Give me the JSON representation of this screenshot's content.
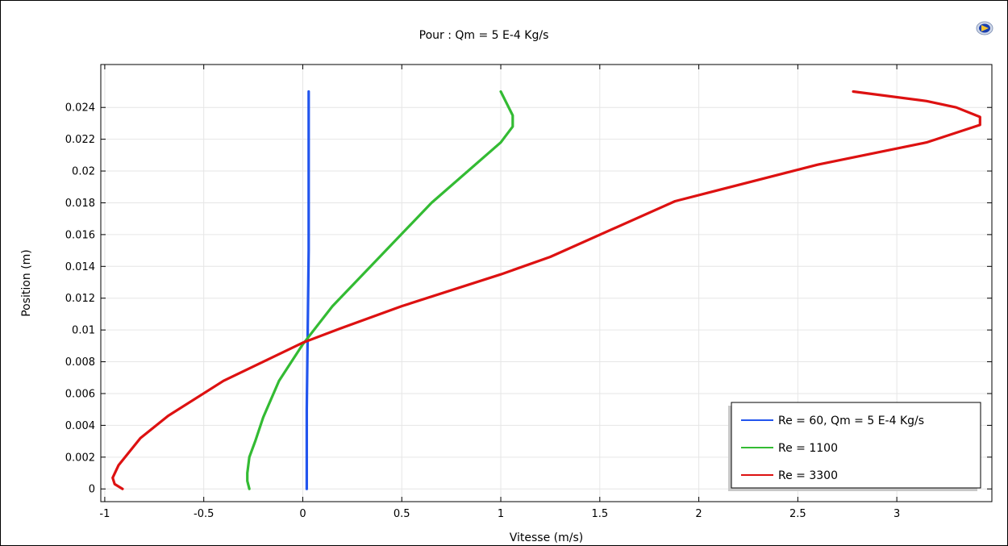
{
  "title": "Pour : Qm = 5 E-4 Kg/s",
  "icon": "comsol-logo-icon",
  "chart_data": {
    "type": "line",
    "title": "Pour : Qm = 5 E-4 Kg/s",
    "xlabel": "Vitesse (m/s)",
    "ylabel": "Position (m)",
    "xlim": [
      -1.02,
      3.48
    ],
    "ylim": [
      -0.0008,
      0.0267
    ],
    "grid": true,
    "legend_position": "bottom-right",
    "x_ticks": [
      {
        "v": -1,
        "label": "-1"
      },
      {
        "v": -0.5,
        "label": "-0.5"
      },
      {
        "v": 0,
        "label": "0"
      },
      {
        "v": 0.5,
        "label": "0.5"
      },
      {
        "v": 1,
        "label": "1"
      },
      {
        "v": 1.5,
        "label": "1.5"
      },
      {
        "v": 2,
        "label": "2"
      },
      {
        "v": 2.5,
        "label": "2.5"
      },
      {
        "v": 3,
        "label": "3"
      }
    ],
    "y_ticks": [
      {
        "v": 0,
        "label": "0"
      },
      {
        "v": 0.002,
        "label": "0.002"
      },
      {
        "v": 0.004,
        "label": "0.004"
      },
      {
        "v": 0.006,
        "label": "0.006"
      },
      {
        "v": 0.008,
        "label": "0.008"
      },
      {
        "v": 0.01,
        "label": "0.01"
      },
      {
        "v": 0.012,
        "label": "0.012"
      },
      {
        "v": 0.014,
        "label": "0.014"
      },
      {
        "v": 0.016,
        "label": "0.016"
      },
      {
        "v": 0.018,
        "label": "0.018"
      },
      {
        "v": 0.02,
        "label": "0.02"
      },
      {
        "v": 0.022,
        "label": "0.022"
      },
      {
        "v": 0.024,
        "label": "0.024"
      }
    ],
    "series": [
      {
        "name": "Re = 60, Qm = 5 E-4 Kg/s",
        "color": "#2255ee",
        "points": [
          [
            0.02,
            0.0
          ],
          [
            0.02,
            0.005
          ],
          [
            0.025,
            0.01
          ],
          [
            0.03,
            0.015
          ],
          [
            0.03,
            0.02
          ],
          [
            0.03,
            0.025
          ]
        ]
      },
      {
        "name": "Re = 1100",
        "color": "#33bb33",
        "points": [
          [
            -0.27,
            0.0
          ],
          [
            -0.28,
            0.0005
          ],
          [
            -0.28,
            0.001
          ],
          [
            -0.27,
            0.002
          ],
          [
            -0.24,
            0.003
          ],
          [
            -0.2,
            0.0045
          ],
          [
            -0.12,
            0.0068
          ],
          [
            0.0,
            0.0091
          ],
          [
            0.15,
            0.0115
          ],
          [
            0.65,
            0.018
          ],
          [
            1.0,
            0.0218
          ],
          [
            1.06,
            0.0228
          ],
          [
            1.06,
            0.0235
          ],
          [
            1.0,
            0.025
          ]
        ]
      },
      {
        "name": "Re = 3300",
        "color": "#dd1111",
        "points": [
          [
            -0.91,
            0.0
          ],
          [
            -0.95,
            0.0003
          ],
          [
            -0.96,
            0.0007
          ],
          [
            -0.93,
            0.0015
          ],
          [
            -0.82,
            0.0032
          ],
          [
            -0.68,
            0.0046
          ],
          [
            -0.4,
            0.0068
          ],
          [
            0.0,
            0.0092
          ],
          [
            0.19,
            0.0101
          ],
          [
            0.5,
            0.0115
          ],
          [
            1.0,
            0.0135
          ],
          [
            1.25,
            0.0146
          ],
          [
            1.88,
            0.0181
          ],
          [
            2.6,
            0.0204
          ],
          [
            3.15,
            0.0218
          ],
          [
            3.42,
            0.0229
          ],
          [
            3.42,
            0.0234
          ],
          [
            3.3,
            0.024
          ],
          [
            3.15,
            0.0244
          ],
          [
            2.78,
            0.025
          ]
        ]
      }
    ]
  }
}
